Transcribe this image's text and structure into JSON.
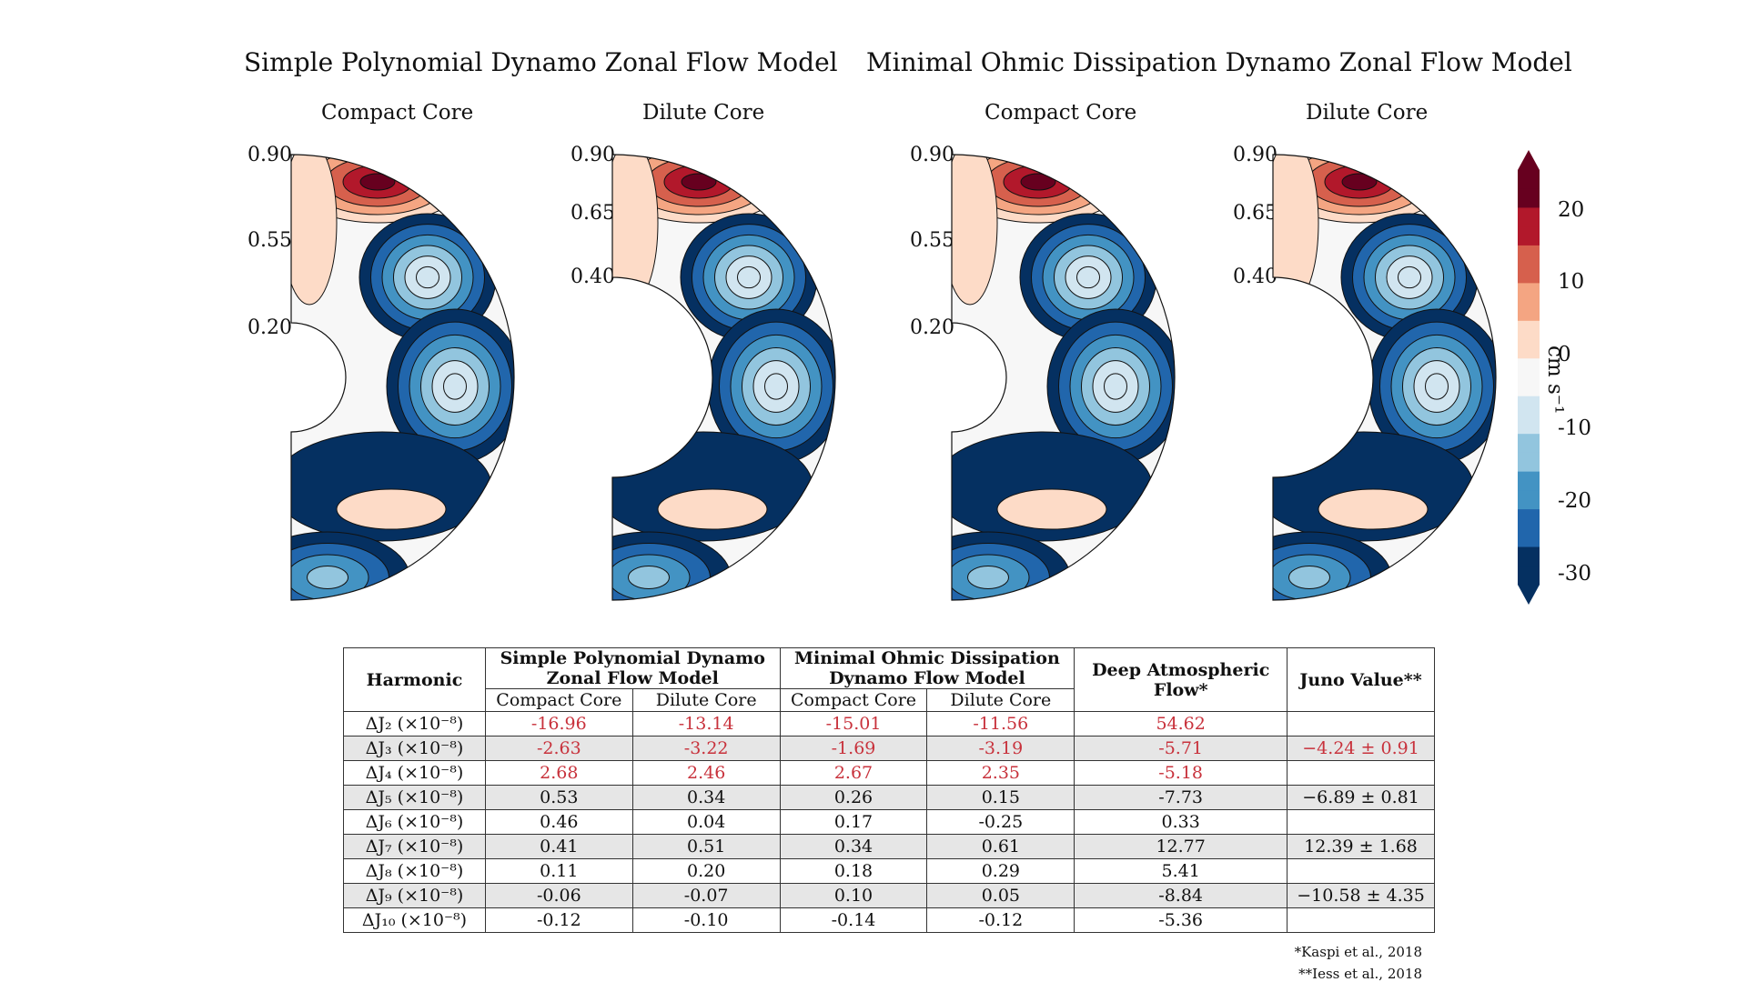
{
  "figure": {
    "models": [
      {
        "title": "Simple Polynomial Dynamo Zonal Flow Model",
        "panels": [
          {
            "title": "Compact Core",
            "radial_labels": [
              "0.90",
              "0.55",
              "0.20"
            ]
          },
          {
            "title": "Dilute Core",
            "radial_labels": [
              "0.90",
              "0.65",
              "0.40"
            ]
          }
        ]
      },
      {
        "title": "Minimal Ohmic Dissipation Dynamo Zonal Flow Model",
        "panels": [
          {
            "title": "Compact Core",
            "radial_labels": [
              "0.90",
              "0.55",
              "0.20"
            ]
          },
          {
            "title": "Dilute Core",
            "radial_labels": [
              "0.90",
              "0.65",
              "0.40"
            ]
          }
        ]
      }
    ],
    "colorbar": {
      "ticks": [
        "20",
        "10",
        "0",
        "-10",
        "-20",
        "-30"
      ],
      "unit": "cm s⁻¹",
      "colors": [
        "#67001f",
        "#b2182b",
        "#d6604d",
        "#f4a582",
        "#fddbc7",
        "#f7f7f7",
        "#d1e5f0",
        "#92c5de",
        "#4393c3",
        "#2166ac",
        "#053061"
      ]
    }
  },
  "table": {
    "headers": {
      "harmonic": "Harmonic",
      "simple": "Simple Polynomial Dynamo Zonal Flow Model",
      "minimal": "Minimal Ohmic Dissipation Dynamo Flow Model",
      "deep": "Deep Atmospheric Flow*",
      "juno": "Juno Value**",
      "compact": "Compact Core",
      "dilute": "Dilute Core"
    },
    "rows": [
      {
        "harmonic": "ΔJ₂ (×10⁻⁸)",
        "values": [
          "-16.96",
          "-13.14",
          "-15.01",
          "-11.56",
          "54.62",
          ""
        ]
      },
      {
        "harmonic": "ΔJ₃ (×10⁻⁸)",
        "values": [
          "-2.63",
          "-3.22",
          "-1.69",
          "-3.19",
          "-5.71",
          "−4.24 ± 0.91"
        ]
      },
      {
        "harmonic": "ΔJ₄ (×10⁻⁸)",
        "values": [
          "2.68",
          "2.46",
          "2.67",
          "2.35",
          "-5.18",
          ""
        ]
      },
      {
        "harmonic": "ΔJ₅ (×10⁻⁸)",
        "values": [
          "0.53",
          "0.34",
          "0.26",
          "0.15",
          "-7.73",
          "−6.89 ± 0.81"
        ]
      },
      {
        "harmonic": "ΔJ₆ (×10⁻⁸)",
        "values": [
          "0.46",
          "0.04",
          "0.17",
          "-0.25",
          "0.33",
          ""
        ]
      },
      {
        "harmonic": "ΔJ₇ (×10⁻⁸)",
        "values": [
          "0.41",
          "0.51",
          "0.34",
          "0.61",
          "12.77",
          "12.39 ± 1.68"
        ]
      },
      {
        "harmonic": "ΔJ₈ (×10⁻⁸)",
        "values": [
          "0.11",
          "0.20",
          "0.18",
          "0.29",
          "5.41",
          ""
        ]
      },
      {
        "harmonic": "ΔJ₉ (×10⁻⁸)",
        "values": [
          "-0.06",
          "-0.07",
          "0.10",
          "0.05",
          "-8.84",
          "−10.58 ± 4.35"
        ]
      },
      {
        "harmonic": "ΔJ₁₀ (×10⁻⁸)",
        "values": [
          "-0.12",
          "-0.10",
          "-0.14",
          "-0.12",
          "-5.36",
          ""
        ]
      }
    ],
    "footnotes": [
      "*Kaspi et al., 2018",
      "**Iess et al., 2018"
    ]
  }
}
